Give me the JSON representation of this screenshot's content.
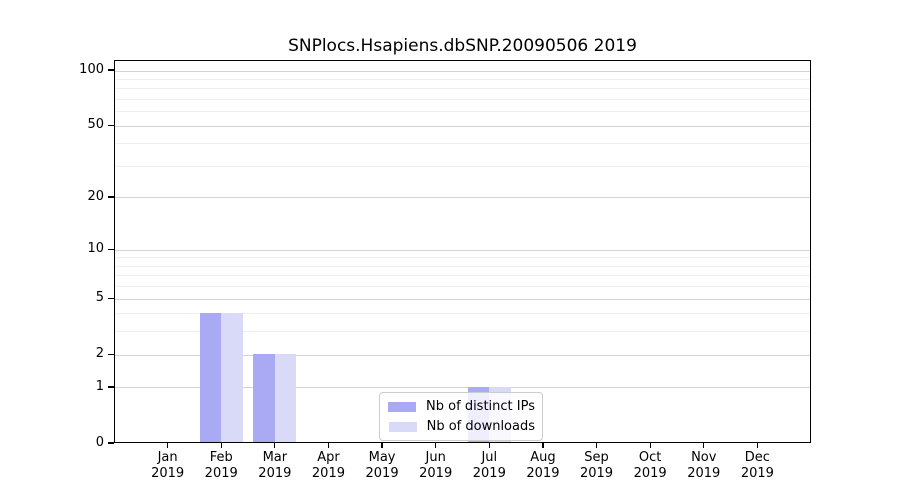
{
  "chart_data": {
    "type": "bar",
    "title": "SNPlocs.Hsapiens.dbSNP.20090506 2019",
    "categories": [
      {
        "month": "Jan",
        "year": "2019"
      },
      {
        "month": "Feb",
        "year": "2019"
      },
      {
        "month": "Mar",
        "year": "2019"
      },
      {
        "month": "Apr",
        "year": "2019"
      },
      {
        "month": "May",
        "year": "2019"
      },
      {
        "month": "Jun",
        "year": "2019"
      },
      {
        "month": "Jul",
        "year": "2019"
      },
      {
        "month": "Aug",
        "year": "2019"
      },
      {
        "month": "Sep",
        "year": "2019"
      },
      {
        "month": "Oct",
        "year": "2019"
      },
      {
        "month": "Nov",
        "year": "2019"
      },
      {
        "month": "Dec",
        "year": "2019"
      }
    ],
    "series": [
      {
        "name": "Nb of distinct IPs",
        "color": "#a9a9f4",
        "values": [
          0,
          4,
          2,
          0,
          0,
          0,
          1,
          0,
          0,
          0,
          0,
          0
        ]
      },
      {
        "name": "Nb of downloads",
        "color": "#d9d9f8",
        "values": [
          0,
          4,
          2,
          0,
          0,
          0,
          1,
          0,
          0,
          0,
          0,
          0
        ]
      }
    ],
    "y_axis": {
      "scale": "log1p",
      "major_ticks": [
        0,
        1,
        2,
        5,
        10,
        20,
        50,
        100
      ],
      "minor_gridlines": [
        3,
        4,
        6,
        7,
        8,
        9,
        30,
        40,
        60,
        70,
        80,
        90
      ],
      "ylim": [
        0,
        113
      ]
    },
    "x_axis": {
      "xlim_units": [
        -1,
        12
      ]
    },
    "legend": {
      "position": "lower-center"
    },
    "colors": {
      "spine": "#000000",
      "major_grid": "#d4d4d4",
      "minor_grid": "#efefef",
      "background": "#ffffff"
    }
  }
}
